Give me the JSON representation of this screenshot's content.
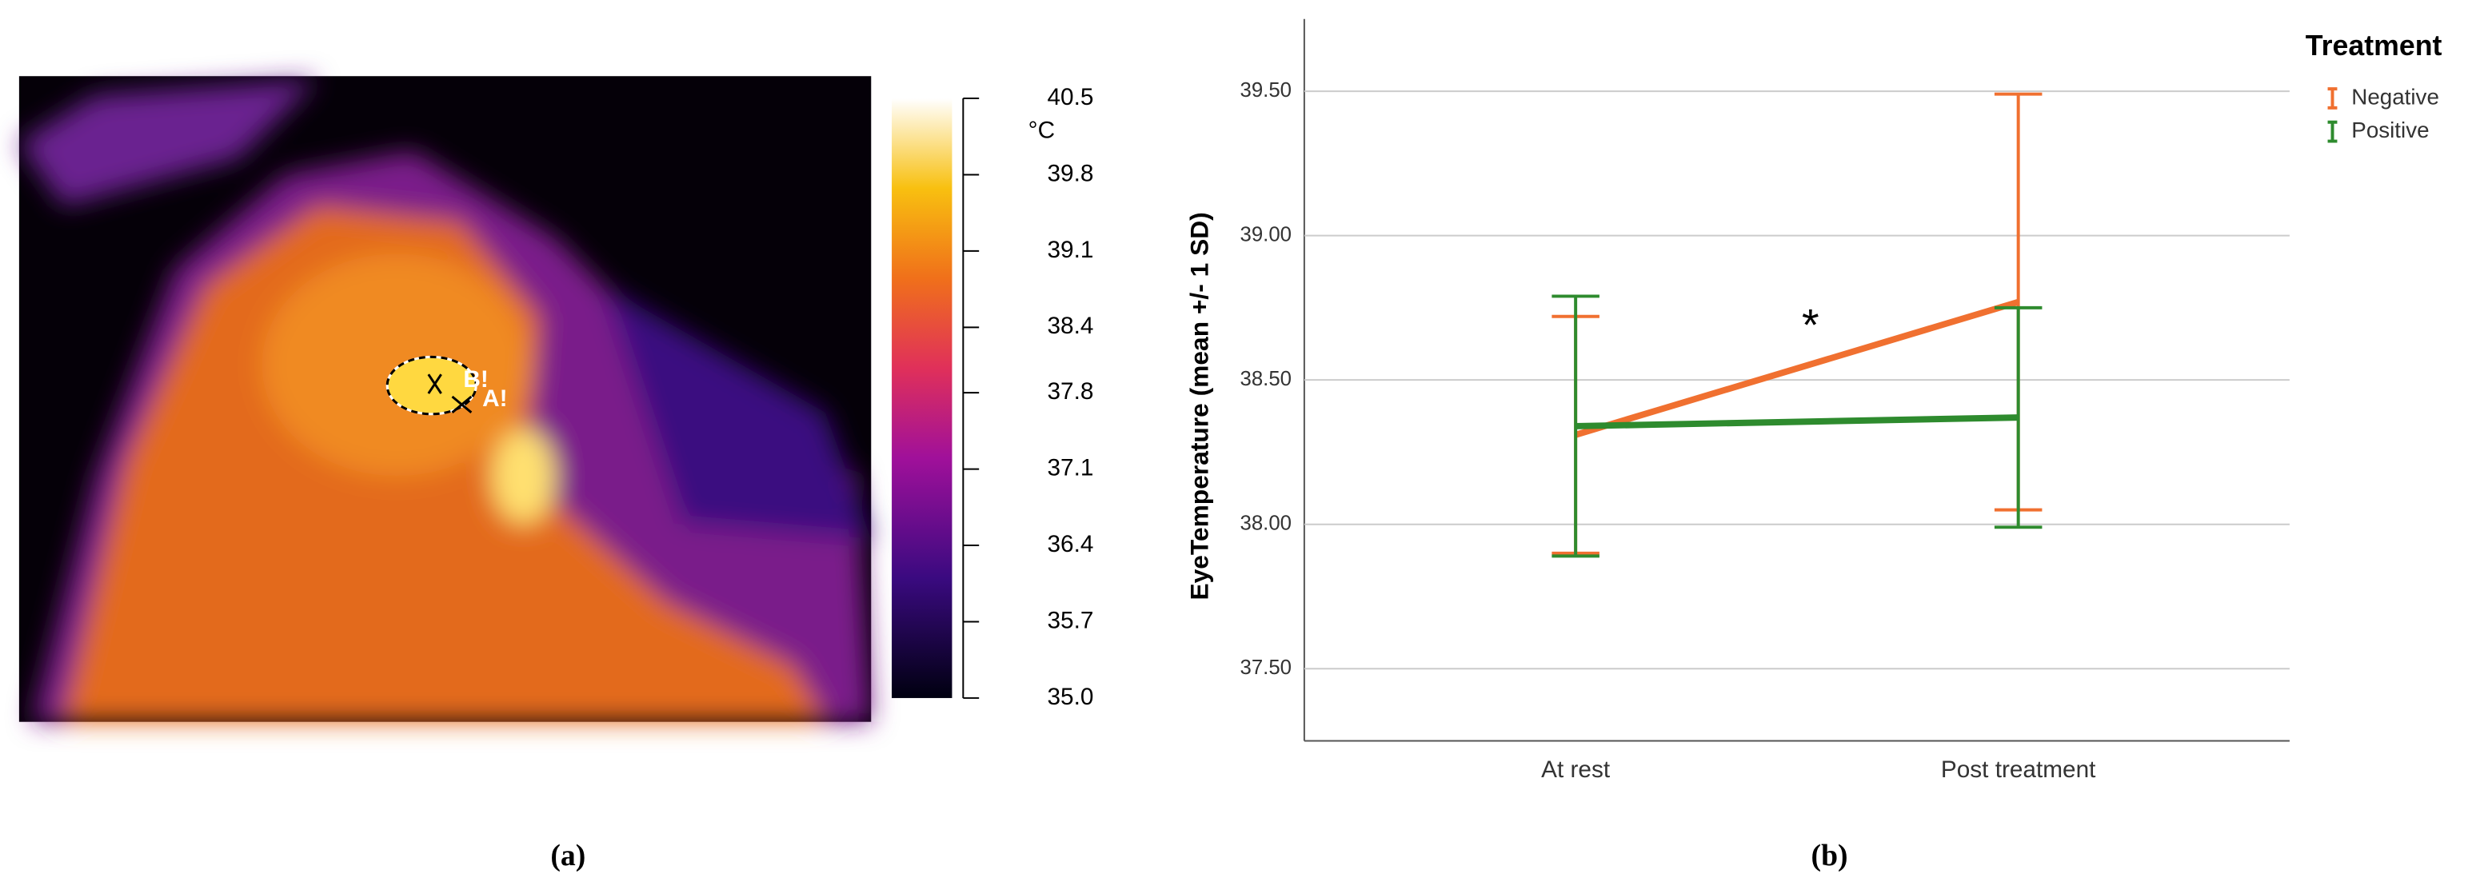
{
  "chart_data": [
    {
      "type": "thermal-image",
      "caption": "(a)",
      "colorbar_label": "°C",
      "colorbar_lim": [
        35,
        40.5
      ],
      "colorbar_ticks": [
        40.5,
        39.8,
        39.1,
        38.4,
        37.8,
        37.1,
        36.4,
        35.7,
        {
          "value": 35,
          "label": "35.0"
        }
      ],
      "annotations": [
        "A!",
        "B!"
      ]
    },
    {
      "type": "line",
      "caption": "(b)",
      "ylabel": "EyeTemperature (mean +/- 1 SD)",
      "categories": [
        "At rest",
        "Post treatment"
      ],
      "legend_title": "Treatment",
      "legend": "top-right",
      "grid": true,
      "annotation": "*",
      "ylim": [
        37.25,
        39.75
      ],
      "yticks": [
        {
          "value": 37.5,
          "label": "37.50"
        },
        {
          "value": 38,
          "label": "38.00"
        },
        {
          "value": 38.5,
          "label": "38.50"
        },
        {
          "value": 39,
          "label": "39.00"
        },
        {
          "value": 39.5,
          "label": "39.50"
        }
      ],
      "series": [
        {
          "name": "Negative",
          "color": "#f07030",
          "values": [
            38.31,
            38.77
          ],
          "errors": [
            0.41,
            0.72
          ]
        },
        {
          "name": "Positive",
          "color": "#2e8b2e",
          "values": [
            38.34,
            38.37
          ],
          "errors": [
            0.45,
            0.38
          ]
        }
      ]
    }
  ]
}
